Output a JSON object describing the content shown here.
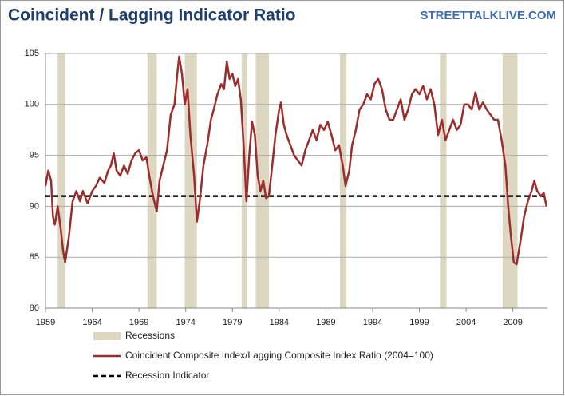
{
  "chart_data": {
    "type": "line",
    "title": "Coincident / Lagging Indicator Ratio",
    "watermark": "STREETTALKLIVE.COM",
    "x": [
      1959.0,
      1959.3,
      1959.6,
      1959.8,
      1960.0,
      1960.3,
      1960.6,
      1960.9,
      1961.1,
      1961.5,
      1961.9,
      1962.3,
      1962.7,
      1963.0,
      1963.5,
      1964.0,
      1964.4,
      1964.8,
      1965.3,
      1965.7,
      1966.0,
      1966.3,
      1966.6,
      1967.0,
      1967.4,
      1967.8,
      1968.2,
      1968.6,
      1969.0,
      1969.4,
      1969.8,
      1970.1,
      1970.5,
      1970.9,
      1971.2,
      1971.6,
      1972.0,
      1972.4,
      1972.8,
      1973.1,
      1973.3,
      1973.6,
      1973.9,
      1974.2,
      1974.5,
      1974.9,
      1975.2,
      1975.5,
      1975.9,
      1976.3,
      1976.7,
      1977.0,
      1977.4,
      1977.8,
      1978.1,
      1978.4,
      1978.7,
      1979.0,
      1979.3,
      1979.6,
      1979.9,
      1980.2,
      1980.5,
      1980.8,
      1981.1,
      1981.4,
      1981.7,
      1982.0,
      1982.3,
      1982.6,
      1982.9,
      1983.2,
      1983.6,
      1984.0,
      1984.2,
      1984.5,
      1984.8,
      1985.2,
      1985.6,
      1986.0,
      1986.4,
      1986.8,
      1987.2,
      1987.6,
      1988.0,
      1988.4,
      1988.8,
      1989.2,
      1989.6,
      1990.0,
      1990.4,
      1990.8,
      1991.1,
      1991.5,
      1991.8,
      1992.2,
      1992.6,
      1993.0,
      1993.4,
      1993.8,
      1994.2,
      1994.6,
      1995.0,
      1995.4,
      1995.8,
      1996.2,
      1996.6,
      1997.0,
      1997.4,
      1997.8,
      1998.2,
      1998.6,
      1999.0,
      1999.4,
      1999.8,
      2000.2,
      2000.6,
      2001.0,
      2001.4,
      2001.8,
      2002.2,
      2002.6,
      2003.0,
      2003.4,
      2003.8,
      2004.2,
      2004.6,
      2005.0,
      2005.4,
      2005.8,
      2006.2,
      2006.6,
      2007.0,
      2007.4,
      2007.8,
      2008.2,
      2008.5,
      2008.8,
      2009.1,
      2009.4,
      2009.8,
      2010.2,
      2010.6,
      2011.0,
      2011.3,
      2011.6,
      2012.0,
      2012.3,
      2012.6
    ],
    "series": [
      {
        "name": "Coincident Composite Index/Lagging Composite Index Ratio (2004=100)",
        "color": "#9b2d2d",
        "values": [
          92,
          93.5,
          92.5,
          89,
          88.2,
          90,
          88,
          85.5,
          84.5,
          87,
          90.5,
          91.5,
          90.5,
          91.5,
          90.3,
          91.5,
          92,
          92.8,
          92.3,
          93.5,
          94,
          95.2,
          93.5,
          93,
          94,
          93.2,
          94.5,
          95.2,
          95.5,
          94.5,
          94.8,
          93,
          91,
          89.5,
          92.5,
          94,
          95.5,
          99,
          100,
          103,
          104.7,
          103,
          100,
          101.5,
          97,
          93,
          88.5,
          90.5,
          94,
          96,
          98.5,
          99.5,
          101,
          102,
          101.5,
          104.2,
          102.5,
          103,
          101.8,
          102.5,
          100.5,
          96,
          90.5,
          95,
          98.3,
          97,
          93,
          91.5,
          92.5,
          90.8,
          91,
          93.5,
          97,
          99.5,
          100.2,
          98,
          97,
          96,
          95,
          94.5,
          94,
          95.5,
          96.5,
          97.5,
          96.5,
          98,
          97.5,
          98.3,
          97,
          95.5,
          96,
          94,
          92,
          93.5,
          96,
          97.5,
          99.5,
          100,
          101,
          100.5,
          102,
          102.5,
          101.5,
          99.5,
          98.5,
          98.5,
          99.5,
          100.5,
          98.5,
          99.5,
          101,
          101.5,
          101,
          101.8,
          100.5,
          101.5,
          100,
          97,
          98.5,
          96.5,
          97.5,
          98.5,
          97.5,
          98,
          100,
          100,
          99.5,
          101.2,
          99.5,
          100.2,
          99.5,
          99,
          98.5,
          98.5,
          96.5,
          94,
          90,
          87,
          84.5,
          84.3,
          86.5,
          89,
          90.5,
          91.5,
          92.5,
          91.5,
          91,
          91.3,
          90
        ]
      }
    ],
    "reference": {
      "name": "Recession Indicator",
      "value": 91,
      "color": "#000000"
    },
    "recessions": {
      "name": "Recessions",
      "color": "#ddd6c0",
      "spans": [
        [
          1960.3,
          1961.1
        ],
        [
          1969.9,
          1970.9
        ],
        [
          1973.9,
          1975.2
        ],
        [
          1980.0,
          1980.6
        ],
        [
          1981.5,
          1982.9
        ],
        [
          1990.5,
          1991.2
        ],
        [
          2001.2,
          2001.9
        ],
        [
          2007.9,
          2009.5
        ]
      ]
    },
    "xlim": [
      1959,
      2012.7
    ],
    "ylim": [
      80,
      105
    ],
    "xticks": [
      1959,
      1964,
      1969,
      1974,
      1979,
      1984,
      1989,
      1994,
      1999,
      2004,
      2009
    ],
    "yticks": [
      80,
      85,
      90,
      95,
      100,
      105
    ],
    "grid": true
  }
}
